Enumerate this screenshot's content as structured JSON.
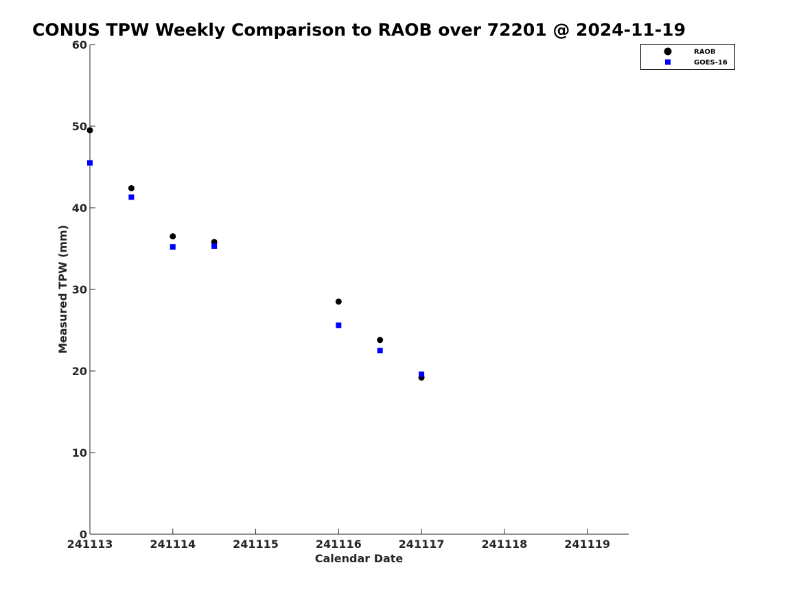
{
  "chart_data": {
    "type": "scatter",
    "title": "CONUS TPW Weekly Comparison to RAOB over 72201 @ 2024-11-19",
    "xlabel": "Calendar Date",
    "ylabel": "Measured TPW (mm)",
    "x_tick_labels": [
      "241113",
      "241114",
      "241115",
      "241116",
      "241117",
      "241118",
      "241119"
    ],
    "x_tick_values": [
      "2024-11-13",
      "2024-11-14",
      "2024-11-15",
      "2024-11-16",
      "2024-11-17",
      "2024-11-18",
      "2024-11-19"
    ],
    "xlim": [
      "2024-11-13",
      "2024-11-19 12:00"
    ],
    "y_ticks": [
      0,
      10,
      20,
      30,
      40,
      50,
      60
    ],
    "ylim": [
      0,
      60
    ],
    "grid": false,
    "legend_position": "top-right, outside plot area",
    "series": [
      {
        "name": "RAOB",
        "marker": "circle",
        "color": "#000000",
        "x": [
          "2024-11-13 00:00",
          "2024-11-13 12:00",
          "2024-11-14 00:00",
          "2024-11-14 12:00",
          "2024-11-16 00:00",
          "2024-11-16 12:00",
          "2024-11-17 00:00"
        ],
        "y": [
          49.5,
          42.4,
          36.5,
          35.8,
          28.5,
          23.8,
          19.2
        ]
      },
      {
        "name": "GOES-16",
        "marker": "square",
        "color": "#0000ff",
        "x": [
          "2024-11-13 00:00",
          "2024-11-13 12:00",
          "2024-11-14 00:00",
          "2024-11-14 12:00",
          "2024-11-16 00:00",
          "2024-11-16 12:00",
          "2024-11-17 00:00"
        ],
        "y": [
          45.5,
          41.3,
          35.2,
          35.3,
          25.6,
          22.5,
          19.6
        ]
      }
    ]
  }
}
